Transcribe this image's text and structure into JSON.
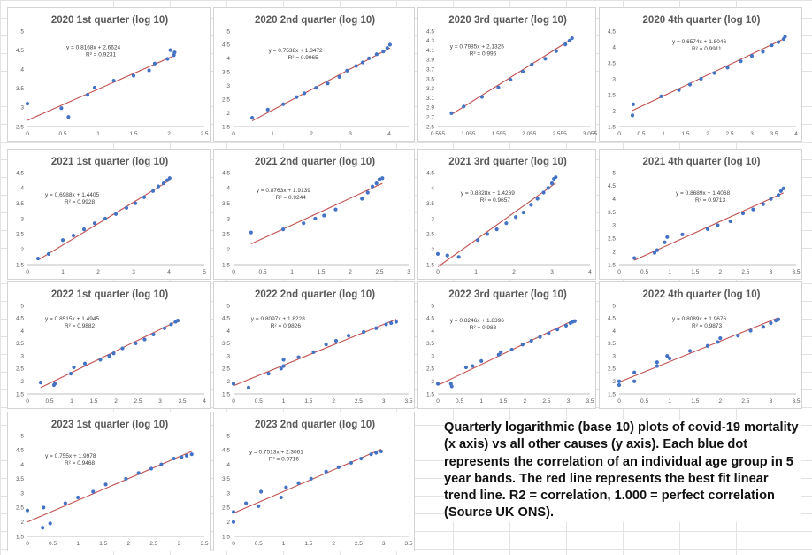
{
  "caption": "Quarterly logarithmic (base 10) plots of covid-19 mortality (x axis) vs all other causes (y axis). Each blue dot represents the correlation of an individual age group in 5 year bands. The red line represents the best fit linear trend line. R2 = correlation, 1.000 = perfect correlation (Source UK ONS).",
  "colors": {
    "points": "#4472c4",
    "trendline": "#c0504d",
    "axis_text": "#595959"
  },
  "chart_data": [
    {
      "type": "scatter",
      "title": "2020 1st quarter (log 10)",
      "xlim": [
        0,
        2.5
      ],
      "ylim": [
        2.5,
        5
      ],
      "xticks": [
        "0",
        "0.5",
        "1",
        "1.5",
        "2",
        "2.5"
      ],
      "yticks": [
        "2.5",
        "3",
        "3.5",
        "4",
        "4.5",
        "5"
      ],
      "trendline": {
        "slope": 0.8168,
        "intercept": 2.6624,
        "equation": "y = 0.8168x + 2.6624",
        "r2": "R² = 0.9231"
      },
      "x": [
        0.0,
        0.48,
        0.58,
        0.85,
        0.95,
        1.22,
        1.5,
        1.72,
        1.8,
        1.98,
        2.02,
        2.07,
        2.08
      ],
      "y": [
        3.1,
        2.98,
        2.75,
        3.33,
        3.52,
        3.7,
        3.83,
        3.97,
        4.15,
        4.27,
        4.5,
        4.37,
        4.44
      ]
    },
    {
      "type": "scatter",
      "title": "2020 2nd quarter (log 10)",
      "xlim": [
        0,
        4.5
      ],
      "ylim": [
        1.5,
        5
      ],
      "xticks": [
        "0",
        "1",
        "2",
        "3",
        "4"
      ],
      "yticks": [
        "1.5",
        "2",
        "2.5",
        "3",
        "3.5",
        "4",
        "4.5",
        "5"
      ],
      "trendline": {
        "slope": 0.7538,
        "intercept": 1.3472,
        "equation": "y = 0.7538x + 1.3472",
        "r2": "R² = 0.9965"
      },
      "x": [
        0.48,
        0.88,
        1.28,
        1.62,
        1.82,
        2.12,
        2.42,
        2.72,
        2.92,
        3.15,
        3.32,
        3.48,
        3.68,
        3.85,
        3.95,
        4.02
      ],
      "y": [
        1.82,
        2.12,
        2.32,
        2.58,
        2.72,
        2.92,
        3.08,
        3.32,
        3.55,
        3.72,
        3.85,
        4.0,
        4.15,
        4.25,
        4.38,
        4.5
      ]
    },
    {
      "type": "scatter",
      "title": "2020 3rd quarter (log 10)",
      "xlim": [
        0.555,
        3.055
      ],
      "ylim": [
        2.5,
        4.5
      ],
      "xticks": [
        "0.555",
        "1.055",
        "1.555",
        "2.055",
        "2.555",
        "3.055"
      ],
      "yticks": [
        "2.5",
        "2.7",
        "2.9",
        "3.1",
        "3.3",
        "3.5",
        "3.7",
        "3.9",
        "4.1",
        "4.3",
        "4.5"
      ],
      "trendline": {
        "slope": 0.7985,
        "intercept": 2.1325,
        "equation": "y = 0.7985x + 2.1325",
        "r2": "R² = 0.996"
      },
      "x": [
        0.78,
        0.98,
        1.28,
        1.55,
        1.75,
        1.95,
        2.1,
        2.32,
        2.5,
        2.65,
        2.72,
        2.76
      ],
      "y": [
        2.78,
        2.92,
        3.12,
        3.32,
        3.48,
        3.65,
        3.8,
        3.92,
        4.08,
        4.22,
        4.3,
        4.35
      ]
    },
    {
      "type": "scatter",
      "title": "2020 4th quarter (log 10)",
      "xlim": [
        0,
        4
      ],
      "ylim": [
        1.5,
        4.5
      ],
      "xticks": [
        "0",
        "0.5",
        "1",
        "1.5",
        "2",
        "2.5",
        "3",
        "3.5",
        "4"
      ],
      "yticks": [
        "1.5",
        "2",
        "2.5",
        "3",
        "3.5",
        "4",
        "4.5"
      ],
      "trendline": {
        "slope": 0.6574,
        "intercept": 1.8046,
        "equation": "y = 0.6574x + 1.8046",
        "r2": "R² = 0.9911"
      },
      "x": [
        0.3,
        0.32,
        0.95,
        1.35,
        1.6,
        1.85,
        2.15,
        2.45,
        2.75,
        3.0,
        3.25,
        3.45,
        3.6,
        3.72,
        3.75
      ],
      "y": [
        1.85,
        2.2,
        2.45,
        2.65,
        2.82,
        3.0,
        3.18,
        3.35,
        3.55,
        3.72,
        3.85,
        4.05,
        4.15,
        4.25,
        4.32
      ]
    },
    {
      "type": "scatter",
      "title": "2021 1st quarter (log 10)",
      "xlim": [
        0,
        5
      ],
      "ylim": [
        1.5,
        4.5
      ],
      "xticks": [
        "0",
        "1",
        "2",
        "3",
        "4",
        "5"
      ],
      "yticks": [
        "1.5",
        "2",
        "2.5",
        "3",
        "3.5",
        "4",
        "4.5"
      ],
      "trendline": {
        "slope": 0.6988,
        "intercept": 1.4405,
        "equation": "y = 0.6988x + 1.4405",
        "r2": "R² = 0.9928"
      },
      "x": [
        0.3,
        0.6,
        1.0,
        1.3,
        1.6,
        1.9,
        2.2,
        2.5,
        2.8,
        3.05,
        3.3,
        3.55,
        3.7,
        3.85,
        3.95,
        4.02
      ],
      "y": [
        1.7,
        1.85,
        2.3,
        2.45,
        2.65,
        2.85,
        3.0,
        3.15,
        3.35,
        3.5,
        3.7,
        3.9,
        4.05,
        4.15,
        4.25,
        4.32
      ]
    },
    {
      "type": "scatter",
      "title": "2021 2nd quarter (log 10)",
      "xlim": [
        0,
        3
      ],
      "ylim": [
        1.5,
        4.5
      ],
      "xticks": [
        "0",
        "0.5",
        "1",
        "1.5",
        "2",
        "2.5",
        "3"
      ],
      "yticks": [
        "1.5",
        "2",
        "2.5",
        "3",
        "3.5",
        "4",
        "4.5"
      ],
      "trendline": {
        "slope": 0.8763,
        "intercept": 1.9139,
        "equation": "y = 0.8763x + 1.9139",
        "r2": "R² = 0.9244"
      },
      "x": [
        0.3,
        0.85,
        1.2,
        1.4,
        1.55,
        1.75,
        2.2,
        2.3,
        2.38,
        2.45,
        2.5,
        2.55
      ],
      "y": [
        2.55,
        2.65,
        2.85,
        3.0,
        3.1,
        3.3,
        3.65,
        3.85,
        4.05,
        4.15,
        4.28,
        4.32
      ]
    },
    {
      "type": "scatter",
      "title": "2021 3rd quarter (log 10)",
      "xlim": [
        0,
        4
      ],
      "ylim": [
        1.5,
        4.5
      ],
      "xticks": [
        "0",
        "1",
        "2",
        "3",
        "4"
      ],
      "yticks": [
        "1.5",
        "2",
        "2.5",
        "3",
        "3.5",
        "4",
        "4.5"
      ],
      "trendline": {
        "slope": 0.8828,
        "intercept": 1.4269,
        "equation": "y = 0.8828x + 1.4269",
        "r2": "R² = 0.9657"
      },
      "x": [
        0.0,
        0.25,
        0.55,
        1.05,
        1.3,
        1.55,
        1.8,
        2.05,
        2.25,
        2.45,
        2.62,
        2.78,
        2.9,
        3.0,
        3.05,
        3.1
      ],
      "y": [
        1.85,
        1.8,
        1.75,
        2.3,
        2.5,
        2.65,
        2.85,
        3.05,
        3.2,
        3.45,
        3.65,
        3.85,
        4.0,
        4.15,
        4.3,
        4.35
      ]
    },
    {
      "type": "scatter",
      "title": "2021 4th quarter (log 10)",
      "xlim": [
        0,
        3.5
      ],
      "ylim": [
        1.5,
        5
      ],
      "xticks": [
        "0",
        "0.5",
        "1",
        "1.5",
        "2",
        "2.5",
        "3",
        "3.5"
      ],
      "yticks": [
        "1.5",
        "2",
        "2.5",
        "3",
        "3.5",
        "4",
        "4.5",
        "5"
      ],
      "trendline": {
        "slope": 0.8689,
        "intercept": 1.4068,
        "equation": "y = 0.8689x + 1.4068",
        "r2": "R² = 0.9713"
      },
      "x": [
        0.3,
        0.7,
        0.75,
        0.9,
        0.95,
        1.25,
        1.75,
        1.95,
        2.2,
        2.45,
        2.65,
        2.85,
        3.0,
        3.15,
        3.2,
        3.25
      ],
      "y": [
        1.75,
        1.95,
        2.05,
        2.35,
        2.55,
        2.65,
        2.85,
        3.0,
        3.15,
        3.45,
        3.6,
        3.8,
        4.0,
        4.15,
        4.3,
        4.4
      ]
    },
    {
      "type": "scatter",
      "title": "2022 1st quarter (log 10)",
      "xlim": [
        0,
        4
      ],
      "ylim": [
        1.5,
        5
      ],
      "xticks": [
        "0",
        "0.5",
        "1",
        "1.5",
        "2",
        "2.5",
        "3",
        "3.5",
        "4"
      ],
      "yticks": [
        "1.5",
        "2",
        "2.5",
        "3",
        "3.5",
        "4",
        "4.5",
        "5"
      ],
      "trendline": {
        "slope": 0.8515,
        "intercept": 1.4945,
        "equation": "y = 0.8515x + 1.4945",
        "r2": "R² = 0.9882"
      },
      "x": [
        0.3,
        0.6,
        0.62,
        0.98,
        1.05,
        1.3,
        1.65,
        1.85,
        1.95,
        2.15,
        2.45,
        2.65,
        2.85,
        3.1,
        3.25,
        3.35,
        3.4
      ],
      "y": [
        1.95,
        1.85,
        1.9,
        2.3,
        2.55,
        2.7,
        2.85,
        3.0,
        3.1,
        3.3,
        3.5,
        3.65,
        3.85,
        4.1,
        4.25,
        4.35,
        4.4
      ]
    },
    {
      "type": "scatter",
      "title": "2022 2nd quarter (log 10)",
      "xlim": [
        0,
        3.5
      ],
      "ylim": [
        1.5,
        5
      ],
      "xticks": [
        "0",
        "0.5",
        "1",
        "1.5",
        "2",
        "2.5",
        "3",
        "3.5"
      ],
      "yticks": [
        "1.5",
        "2",
        "2.5",
        "3",
        "3.5",
        "4",
        "4.5",
        "5"
      ],
      "trendline": {
        "slope": 0.8097,
        "intercept": 1.8228,
        "equation": "y = 0.8097x + 1.8228",
        "r2": "R² = 0.9826"
      },
      "x": [
        0.0,
        0.3,
        0.7,
        0.95,
        1.0,
        1.0,
        1.3,
        1.6,
        1.85,
        2.05,
        2.3,
        2.6,
        2.85,
        3.05,
        3.15,
        3.25
      ],
      "y": [
        1.9,
        1.75,
        2.3,
        2.5,
        2.6,
        2.85,
        2.95,
        3.15,
        3.45,
        3.6,
        3.8,
        3.95,
        4.1,
        4.25,
        4.3,
        4.35
      ]
    },
    {
      "type": "scatter",
      "title": "2022 3rd quarter (log 10)",
      "xlim": [
        0,
        3.5
      ],
      "ylim": [
        1.5,
        5
      ],
      "xticks": [
        "0",
        "0.5",
        "1",
        "1.5",
        "2",
        "2.5",
        "3",
        "3.5"
      ],
      "yticks": [
        "1.5",
        "2",
        "2.5",
        "3",
        "3.5",
        "4",
        "4.5",
        "5"
      ],
      "trendline": {
        "slope": 0.8246,
        "intercept": 1.8396,
        "equation": "y = 0.8246x + 1.8396",
        "r2": "R² = 0.983"
      },
      "x": [
        0.0,
        0.3,
        0.32,
        0.65,
        0.8,
        1.0,
        1.4,
        1.45,
        1.7,
        1.95,
        2.15,
        2.35,
        2.55,
        2.75,
        2.95,
        3.05,
        3.1,
        3.15
      ],
      "y": [
        1.9,
        1.9,
        1.8,
        2.55,
        2.6,
        2.8,
        3.05,
        3.15,
        3.25,
        3.45,
        3.6,
        3.75,
        3.9,
        4.05,
        4.2,
        4.3,
        4.35,
        4.38
      ]
    },
    {
      "type": "scatter",
      "title": "2022 4th quarter (log 10)",
      "xlim": [
        0,
        3.5
      ],
      "ylim": [
        1.5,
        5
      ],
      "xticks": [
        "0",
        "0.5",
        "1",
        "1.5",
        "2",
        "2.5",
        "3",
        "3.5"
      ],
      "yticks": [
        "1.5",
        "2",
        "2.5",
        "3",
        "3.5",
        "4",
        "4.5",
        "5"
      ],
      "trendline": {
        "slope": 0.8089,
        "intercept": 1.9676,
        "equation": "y = 0.8089x + 1.9676",
        "r2": "R² = 0.9873"
      },
      "x": [
        0.0,
        0.0,
        0.3,
        0.3,
        0.75,
        0.75,
        0.95,
        1.0,
        1.4,
        1.75,
        1.95,
        2.0,
        2.35,
        2.6,
        2.85,
        3.0,
        3.1,
        3.15
      ],
      "y": [
        1.85,
        2.0,
        2.0,
        2.35,
        2.6,
        2.75,
        3.0,
        2.9,
        3.2,
        3.4,
        3.55,
        3.7,
        3.8,
        4.0,
        4.15,
        4.3,
        4.4,
        4.45
      ]
    },
    {
      "type": "scatter",
      "title": "2023 1st quarter (log 10)",
      "xlim": [
        0,
        3.5
      ],
      "ylim": [
        1.5,
        5
      ],
      "xticks": [
        "0",
        "0.5",
        "1",
        "1.5",
        "2",
        "2.5",
        "3",
        "3.5"
      ],
      "yticks": [
        "1.5",
        "2",
        "2.5",
        "3",
        "3.5",
        "4",
        "4.5",
        "5"
      ],
      "trendline": {
        "slope": 0.755,
        "intercept": 1.9978,
        "equation": "y = 0.755x + 1.9978",
        "r2": "R² = 0.9468"
      },
      "x": [
        0.0,
        0.3,
        0.32,
        0.45,
        0.75,
        1.0,
        1.3,
        1.55,
        1.95,
        2.2,
        2.45,
        2.65,
        2.9,
        3.05,
        3.15,
        3.25
      ],
      "y": [
        2.4,
        1.8,
        2.5,
        1.95,
        2.65,
        2.85,
        3.05,
        3.3,
        3.5,
        3.7,
        3.85,
        4.0,
        4.2,
        4.25,
        4.3,
        4.35
      ]
    },
    {
      "type": "scatter",
      "title": "2023 2nd quarter (log 10)",
      "xlim": [
        0,
        3.5
      ],
      "ylim": [
        1.5,
        5
      ],
      "xticks": [
        "0",
        "0.5",
        "1",
        "1.5",
        "2",
        "2.5",
        "3",
        "3.5"
      ],
      "yticks": [
        "1.5",
        "2",
        "2.5",
        "3",
        "3.5",
        "4",
        "4.5",
        "5"
      ],
      "trendline": {
        "slope": 0.7513,
        "intercept": 2.3061,
        "equation": "y = 0.7513x + 2.3061",
        "r2": "R² = 0.9716"
      },
      "x": [
        0.0,
        0.0,
        0.25,
        0.5,
        0.55,
        0.95,
        1.05,
        1.3,
        1.55,
        1.85,
        2.1,
        2.35,
        2.55,
        2.75,
        2.85,
        2.95
      ],
      "y": [
        2.0,
        2.35,
        2.65,
        2.55,
        3.05,
        2.85,
        3.2,
        3.35,
        3.5,
        3.75,
        3.9,
        4.05,
        4.2,
        4.35,
        4.4,
        4.45
      ]
    }
  ]
}
